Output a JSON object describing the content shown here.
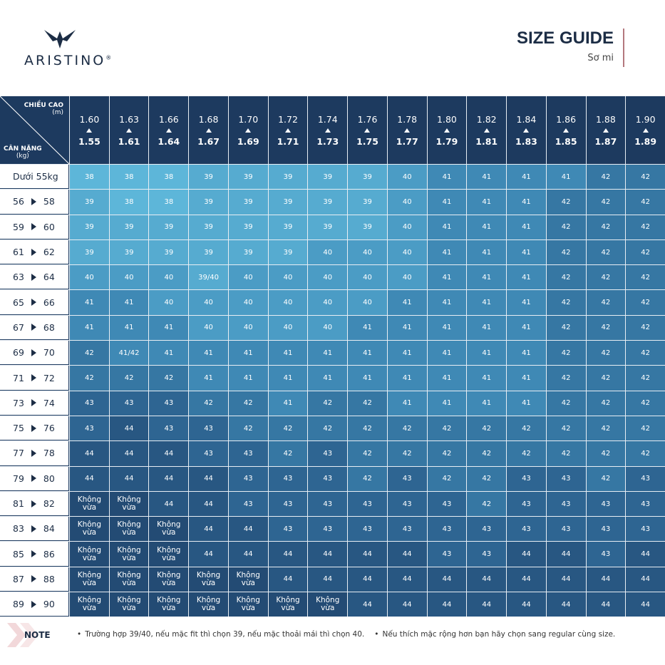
{
  "header": {
    "brand": "ARISTINO",
    "title": "SIZE GUIDE",
    "subtitle": "Sơ mi"
  },
  "table": {
    "corner": {
      "height_label": "CHIỀU CAO",
      "height_unit": "(m)",
      "weight_label": "CÂN NẶNG",
      "weight_unit": "(kg)"
    },
    "columns": [
      {
        "top": "1.60",
        "bottom": "1.55"
      },
      {
        "top": "1.63",
        "bottom": "1.61"
      },
      {
        "top": "1.66",
        "bottom": "1.64"
      },
      {
        "top": "1.68",
        "bottom": "1.67"
      },
      {
        "top": "1.70",
        "bottom": "1.69"
      },
      {
        "top": "1.72",
        "bottom": "1.71"
      },
      {
        "top": "1.74",
        "bottom": "1.73"
      },
      {
        "top": "1.76",
        "bottom": "1.75"
      },
      {
        "top": "1.78",
        "bottom": "1.77"
      },
      {
        "top": "1.80",
        "bottom": "1.79"
      },
      {
        "top": "1.82",
        "bottom": "1.81"
      },
      {
        "top": "1.84",
        "bottom": "1.83"
      },
      {
        "top": "1.86",
        "bottom": "1.85"
      },
      {
        "top": "1.88",
        "bottom": "1.87"
      },
      {
        "top": "1.90",
        "bottom": "1.89"
      }
    ],
    "rows": [
      {
        "weight": "Dưới 55kg",
        "sizes": [
          "38",
          "38",
          "38",
          "39",
          "39",
          "39",
          "39",
          "39",
          "40",
          "41",
          "41",
          "41",
          "41",
          "42",
          "42"
        ]
      },
      {
        "weight": {
          "from": "56",
          "to": "58"
        },
        "sizes": [
          "39",
          "38",
          "38",
          "39",
          "39",
          "39",
          "39",
          "39",
          "40",
          "41",
          "41",
          "41",
          "42",
          "42",
          "42"
        ]
      },
      {
        "weight": {
          "from": "59",
          "to": "60"
        },
        "sizes": [
          "39",
          "39",
          "39",
          "39",
          "39",
          "39",
          "39",
          "39",
          "40",
          "41",
          "41",
          "41",
          "42",
          "42",
          "42"
        ]
      },
      {
        "weight": {
          "from": "61",
          "to": "62"
        },
        "sizes": [
          "39",
          "39",
          "39",
          "39",
          "39",
          "39",
          "40",
          "40",
          "40",
          "41",
          "41",
          "41",
          "42",
          "42",
          "42"
        ]
      },
      {
        "weight": {
          "from": "63",
          "to": "64"
        },
        "sizes": [
          "40",
          "40",
          "40",
          "39/40",
          "40",
          "40",
          "40",
          "40",
          "40",
          "41",
          "41",
          "41",
          "42",
          "42",
          "42"
        ]
      },
      {
        "weight": {
          "from": "65",
          "to": "66"
        },
        "sizes": [
          "41",
          "41",
          "40",
          "40",
          "40",
          "40",
          "40",
          "40",
          "41",
          "41",
          "41",
          "41",
          "42",
          "42",
          "42"
        ]
      },
      {
        "weight": {
          "from": "67",
          "to": "68"
        },
        "sizes": [
          "41",
          "41",
          "41",
          "40",
          "40",
          "40",
          "40",
          "41",
          "41",
          "41",
          "41",
          "41",
          "42",
          "42",
          "42"
        ]
      },
      {
        "weight": {
          "from": "69",
          "to": "70"
        },
        "sizes": [
          "42",
          "41/42",
          "41",
          "41",
          "41",
          "41",
          "41",
          "41",
          "41",
          "41",
          "41",
          "41",
          "42",
          "42",
          "42"
        ]
      },
      {
        "weight": {
          "from": "71",
          "to": "72"
        },
        "sizes": [
          "42",
          "42",
          "42",
          "41",
          "41",
          "41",
          "41",
          "41",
          "41",
          "41",
          "41",
          "41",
          "42",
          "42",
          "42"
        ]
      },
      {
        "weight": {
          "from": "73",
          "to": "74"
        },
        "sizes": [
          "43",
          "43",
          "43",
          "42",
          "42",
          "41",
          "42",
          "42",
          "41",
          "41",
          "41",
          "41",
          "42",
          "42",
          "42"
        ]
      },
      {
        "weight": {
          "from": "75",
          "to": "76"
        },
        "sizes": [
          "43",
          "44",
          "43",
          "43",
          "42",
          "42",
          "42",
          "42",
          "42",
          "42",
          "42",
          "42",
          "42",
          "42",
          "42"
        ]
      },
      {
        "weight": {
          "from": "77",
          "to": "78"
        },
        "sizes": [
          "44",
          "44",
          "44",
          "43",
          "43",
          "42",
          "43",
          "42",
          "42",
          "42",
          "42",
          "42",
          "42",
          "42",
          "42"
        ]
      },
      {
        "weight": {
          "from": "79",
          "to": "80"
        },
        "sizes": [
          "44",
          "44",
          "44",
          "44",
          "43",
          "43",
          "43",
          "42",
          "43",
          "42",
          "42",
          "43",
          "43",
          "42",
          "43"
        ]
      },
      {
        "weight": {
          "from": "81",
          "to": "82"
        },
        "sizes": [
          "Không vừa",
          "Không vừa",
          "44",
          "44",
          "43",
          "43",
          "43",
          "43",
          "43",
          "43",
          "42",
          "43",
          "43",
          "43",
          "43"
        ]
      },
      {
        "weight": {
          "from": "83",
          "to": "84"
        },
        "sizes": [
          "Không vừa",
          "Không vừa",
          "Không vừa",
          "44",
          "44",
          "43",
          "43",
          "43",
          "43",
          "43",
          "43",
          "43",
          "43",
          "43",
          "43"
        ]
      },
      {
        "weight": {
          "from": "85",
          "to": "86"
        },
        "sizes": [
          "Không vừa",
          "Không vừa",
          "Không vừa",
          "44",
          "44",
          "44",
          "44",
          "44",
          "44",
          "43",
          "43",
          "44",
          "44",
          "43",
          "44"
        ]
      },
      {
        "weight": {
          "from": "87",
          "to": "88"
        },
        "sizes": [
          "Không vừa",
          "Không vừa",
          "Không vừa",
          "Không vừa",
          "Không vừa",
          "44",
          "44",
          "44",
          "44",
          "44",
          "44",
          "44",
          "44",
          "44",
          "44"
        ]
      },
      {
        "weight": {
          "from": "89",
          "to": "90"
        },
        "sizes": [
          "Không vừa",
          "Không vừa",
          "Không vừa",
          "Không vừa",
          "Không vừa",
          "Không vừa",
          "Không vừa",
          "44",
          "44",
          "44",
          "44",
          "44",
          "44",
          "44",
          "44"
        ]
      }
    ]
  },
  "note": {
    "label": "NOTE",
    "items": [
      "Trường hợp 39/40, nếu mặc fit thì chọn 39, nếu mặc thoải mái thì chọn 40.",
      "Nếu thích mặc rộng hơn bạn hãy chọn sang regular cùng size."
    ]
  }
}
